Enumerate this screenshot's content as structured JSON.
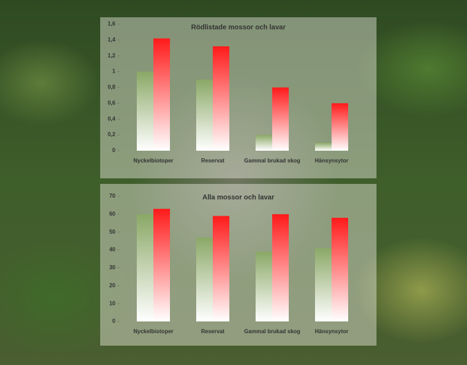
{
  "chart_data": [
    {
      "type": "bar",
      "title": "Rödlistade mossor och lavar",
      "categories": [
        "Nyckelbiotoper",
        "Reservat",
        "Gammal brukad skog",
        "Hänsynsytor"
      ],
      "series": [
        {
          "color": "#8aa866",
          "values": [
            1.0,
            0.9,
            0.2,
            0.1
          ]
        },
        {
          "color": "#ff1a1a",
          "values": [
            1.42,
            1.32,
            0.8,
            0.6
          ]
        }
      ],
      "ylim": [
        0,
        1.6
      ],
      "yticks": [
        0,
        {
          "value": 0.2,
          "label": "0,2"
        },
        {
          "value": 0.4,
          "label": "0,4"
        },
        {
          "value": 0.6,
          "label": "0,6"
        },
        {
          "value": 0.8,
          "label": "0,8"
        },
        1,
        {
          "value": 1.2,
          "label": "1,2"
        },
        {
          "value": 1.4,
          "label": "1,4"
        },
        {
          "value": 1.6,
          "label": "1,6"
        }
      ],
      "grid": false
    },
    {
      "type": "bar",
      "title": "Alla mossor och lavar",
      "categories": [
        "Nyckelbiotoper",
        "Reservat",
        "Gammal brukad skog",
        "Hänsynsytor"
      ],
      "series": [
        {
          "color": "#8aa866",
          "values": [
            60,
            47,
            39,
            41
          ]
        },
        {
          "color": "#ff1a1a",
          "values": [
            63,
            59,
            60,
            58
          ]
        }
      ],
      "ylim": [
        0,
        70
      ],
      "yticks": [
        0,
        10,
        20,
        30,
        40,
        50,
        60,
        70
      ],
      "grid": false
    }
  ]
}
